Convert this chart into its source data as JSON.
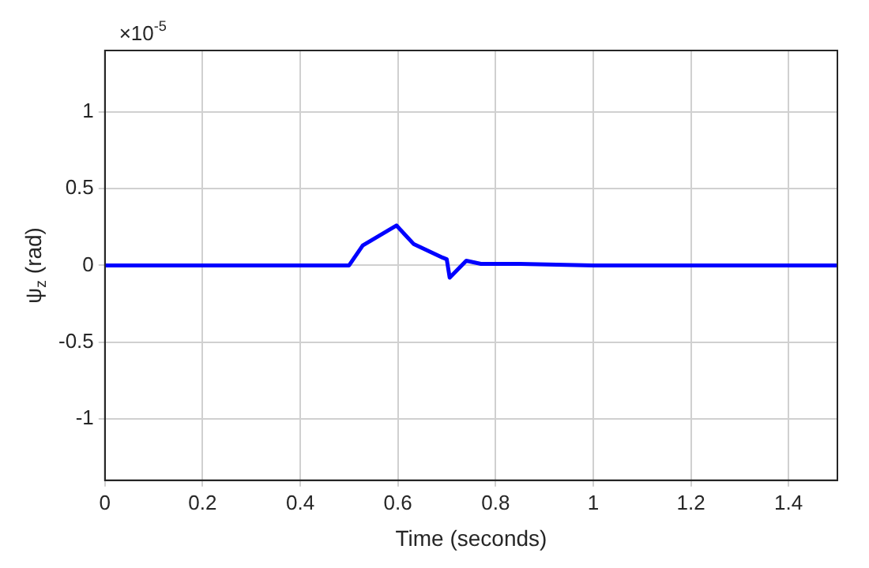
{
  "chart_data": {
    "type": "line",
    "xlabel": "Time (seconds)",
    "ylabel": "ψ$_{z}$ (rad)",
    "annotations": [
      "×10$^{-5}$"
    ],
    "xlim": [
      0,
      1.5
    ],
    "xticks": [
      0,
      0.2,
      0.4,
      0.6,
      0.8,
      1,
      1.2,
      1.4
    ],
    "ylim": [
      -1.4,
      1.4
    ],
    "yticks": [
      -1,
      -0.5,
      0,
      0.5,
      1
    ],
    "grid": true,
    "legend": false,
    "series": [
      {
        "color": "#0000ff",
        "x": [
          0,
          0.5,
          0.528,
          0.597,
          0.632,
          0.692,
          0.7,
          0.706,
          0.74,
          0.77,
          0.85,
          1.0,
          1.5
        ],
        "values": [
          0,
          0,
          0.13,
          0.26,
          0.14,
          0.05,
          0.04,
          -0.08,
          0.03,
          0.01,
          0.01,
          0,
          0
        ]
      }
    ]
  }
}
